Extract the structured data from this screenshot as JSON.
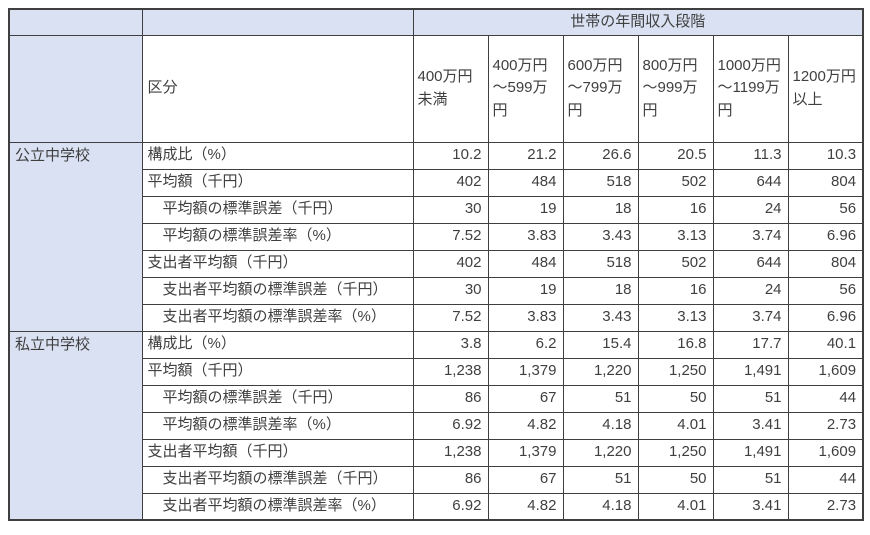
{
  "table": {
    "top_header": "世帯の年間収入段階",
    "kubun_label": "区分",
    "income_brackets": [
      "400万円未満",
      "400万円～599万円",
      "600万円～799万円",
      "800万円～999万円",
      "1000万円～1199万円",
      "1200万円以上"
    ],
    "sections": [
      {
        "name": "公立中学校",
        "rows": [
          {
            "label": "構成比（%）",
            "indent": false,
            "values": [
              "10.2",
              "21.2",
              "26.6",
              "20.5",
              "11.3",
              "10.3"
            ]
          },
          {
            "label": "平均額（千円）",
            "indent": false,
            "values": [
              "402",
              "484",
              "518",
              "502",
              "644",
              "804"
            ]
          },
          {
            "label": "平均額の標準誤差（千円）",
            "indent": true,
            "values": [
              "30",
              "19",
              "18",
              "16",
              "24",
              "56"
            ]
          },
          {
            "label": "平均額の標準誤差率（%）",
            "indent": true,
            "values": [
              "7.52",
              "3.83",
              "3.43",
              "3.13",
              "3.74",
              "6.96"
            ]
          },
          {
            "label": "支出者平均額（千円）",
            "indent": false,
            "values": [
              "402",
              "484",
              "518",
              "502",
              "644",
              "804"
            ]
          },
          {
            "label": "支出者平均額の標準誤差（千円）",
            "indent": true,
            "values": [
              "30",
              "19",
              "18",
              "16",
              "24",
              "56"
            ]
          },
          {
            "label": "支出者平均額の標準誤差率（%）",
            "indent": true,
            "values": [
              "7.52",
              "3.83",
              "3.43",
              "3.13",
              "3.74",
              "6.96"
            ]
          }
        ]
      },
      {
        "name": "私立中学校",
        "rows": [
          {
            "label": "構成比（%）",
            "indent": false,
            "values": [
              "3.8",
              "6.2",
              "15.4",
              "16.8",
              "17.7",
              "40.1"
            ]
          },
          {
            "label": "平均額（千円）",
            "indent": false,
            "values": [
              "1,238",
              "1,379",
              "1,220",
              "1,250",
              "1,491",
              "1,609"
            ]
          },
          {
            "label": "平均額の標準誤差（千円）",
            "indent": true,
            "values": [
              "86",
              "67",
              "51",
              "50",
              "51",
              "44"
            ]
          },
          {
            "label": "平均額の標準誤差率（%）",
            "indent": true,
            "values": [
              "6.92",
              "4.82",
              "4.18",
              "4.01",
              "3.41",
              "2.73"
            ]
          },
          {
            "label": "支出者平均額（千円）",
            "indent": false,
            "values": [
              "1,238",
              "1,379",
              "1,220",
              "1,250",
              "1,491",
              "1,609"
            ]
          },
          {
            "label": "支出者平均額の標準誤差（千円）",
            "indent": true,
            "values": [
              "86",
              "67",
              "51",
              "50",
              "51",
              "44"
            ]
          },
          {
            "label": "支出者平均額の標準誤差率（%）",
            "indent": true,
            "values": [
              "6.92",
              "4.82",
              "4.18",
              "4.01",
              "3.41",
              "2.73"
            ]
          }
        ]
      }
    ],
    "colors": {
      "header_bg": "#d9e1f2",
      "border": "#3f3f3f",
      "text": "#3f3f3f"
    }
  }
}
